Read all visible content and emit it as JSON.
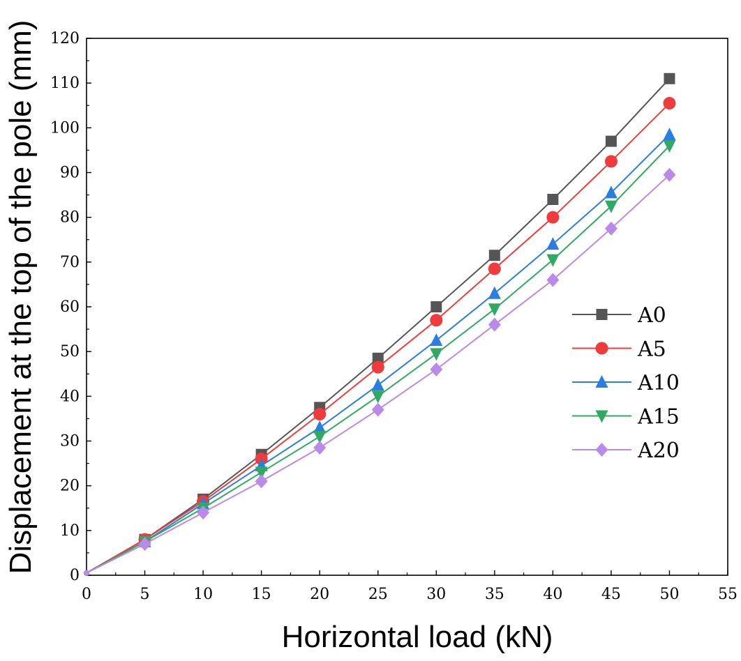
{
  "chart_data": {
    "type": "line",
    "title": "",
    "xlabel": "Horizontal load (kN)",
    "ylabel": "Displacement at the top of the pole (mm)",
    "xlim": [
      0,
      55
    ],
    "ylim": [
      0,
      120
    ],
    "xticks": [
      0,
      5,
      10,
      15,
      20,
      25,
      30,
      35,
      40,
      45,
      50,
      55
    ],
    "yticks": [
      0,
      10,
      20,
      30,
      40,
      50,
      60,
      70,
      80,
      90,
      100,
      110,
      120
    ],
    "grid": false,
    "legend_position": "center-right",
    "x": [
      0,
      5,
      10,
      15,
      20,
      25,
      30,
      35,
      40,
      45,
      50
    ],
    "series": [
      {
        "name": "A0",
        "color": "#555555",
        "marker": "square",
        "values": [
          0.5,
          8.0,
          17.0,
          27.0,
          37.5,
          48.5,
          60.0,
          71.5,
          84.0,
          97.0,
          111.0
        ]
      },
      {
        "name": "A5",
        "color": "#ef3b3b",
        "marker": "circle",
        "values": [
          0.5,
          8.0,
          16.5,
          26.0,
          36.0,
          46.5,
          57.0,
          68.5,
          80.0,
          92.5,
          105.5
        ]
      },
      {
        "name": "A10",
        "color": "#2a7de1",
        "marker": "triangle-up",
        "values": [
          0.5,
          7.5,
          16.0,
          24.5,
          33.0,
          42.5,
          52.5,
          63.0,
          74.0,
          85.5,
          98.5
        ]
      },
      {
        "name": "A15",
        "color": "#2eaa63",
        "marker": "triangle-down",
        "values": [
          0.5,
          7.5,
          15.0,
          23.0,
          31.0,
          40.0,
          49.5,
          59.5,
          70.5,
          82.5,
          96.0
        ]
      },
      {
        "name": "A20",
        "color": "#b98ae8",
        "marker": "diamond",
        "values": [
          0.5,
          7.0,
          14.0,
          21.0,
          28.5,
          37.0,
          46.0,
          56.0,
          66.0,
          77.5,
          89.5
        ]
      }
    ]
  }
}
